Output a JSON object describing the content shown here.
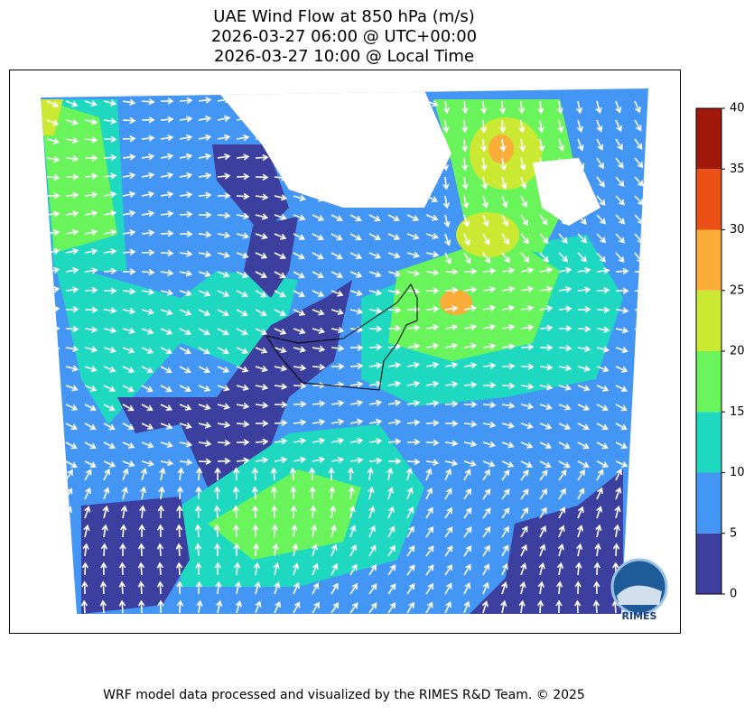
{
  "title": [
    "UAE Wind Flow at 850 hPa (m/s)",
    "2026-03-27 06:00 @ UTC+00:00",
    "2026-03-27 10:00 @ Local Time"
  ],
  "colorbar": {
    "ticks": [
      0,
      5,
      10,
      15,
      20,
      25,
      30,
      35,
      40
    ],
    "colors": [
      "#3d3f9e",
      "#4496f4",
      "#1fd8c0",
      "#68f45a",
      "#cbe933",
      "#fbad3a",
      "#eb5016",
      "#a1190b"
    ]
  },
  "logo": "RIMES",
  "footer": "WRF model data processed and visualized by the RIMES R&D Team. © 2025"
}
